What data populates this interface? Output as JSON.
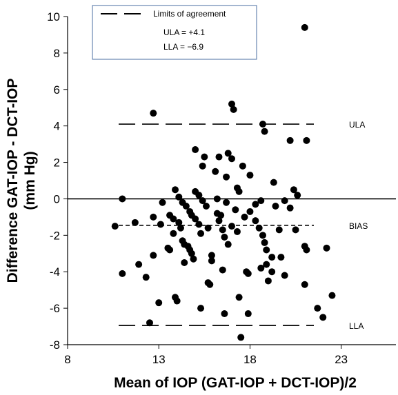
{
  "chart_data": {
    "type": "scatter",
    "xlabel": "Mean of IOP (GAT-IOP + DCT-IOP)/2",
    "ylabel": "Difference GAT-IOP - DCT-IOP (mm Hg)",
    "ylabel_lines": [
      "Difference GAT-IOP - DCT-IOP",
      "(mm Hg)"
    ],
    "xlim": [
      8,
      26
    ],
    "ylim": [
      -8,
      10
    ],
    "x_ticks": [
      8,
      13,
      18,
      23
    ],
    "y_ticks": [
      -8,
      -6,
      -4,
      -2,
      0,
      2,
      4,
      6,
      8,
      10
    ],
    "grid": false,
    "legend": {
      "position": "top-left",
      "title": "Limits of agreement",
      "lines": [
        "ULA = +4.1",
        "LLA = −6.9"
      ]
    },
    "reference_lines": [
      {
        "name": "ULA",
        "label": "ULA",
        "y": 4.1,
        "style": "long-dash",
        "x_range": [
          10.8,
          21.5
        ]
      },
      {
        "name": "BIAS",
        "label": "BIAS",
        "y": -1.45,
        "style": "short-dash",
        "x_range": [
          10.8,
          21.5
        ]
      },
      {
        "name": "LLA",
        "label": "LLA",
        "y": -6.95,
        "style": "long-dash",
        "x_range": [
          10.8,
          21.5
        ]
      },
      {
        "name": "zero",
        "label": "",
        "y": 0,
        "style": "solid",
        "x_range": [
          8,
          26
        ]
      }
    ],
    "points": [
      [
        10.6,
        -1.5
      ],
      [
        11.0,
        0.0
      ],
      [
        11.0,
        -4.1
      ],
      [
        11.7,
        -1.3
      ],
      [
        11.9,
        -3.6
      ],
      [
        12.3,
        -4.3
      ],
      [
        12.5,
        -6.8
      ],
      [
        12.7,
        -1.0
      ],
      [
        12.7,
        4.7
      ],
      [
        12.7,
        -3.1
      ],
      [
        13.0,
        -5.7
      ],
      [
        13.1,
        -1.4
      ],
      [
        13.2,
        -0.2
      ],
      [
        13.5,
        -2.7
      ],
      [
        13.6,
        -0.9
      ],
      [
        13.6,
        -2.8
      ],
      [
        13.8,
        -1.1
      ],
      [
        13.8,
        -1.9
      ],
      [
        13.9,
        0.5
      ],
      [
        13.9,
        -5.4
      ],
      [
        14.0,
        -5.6
      ],
      [
        14.1,
        0.1
      ],
      [
        14.1,
        -1.3
      ],
      [
        14.2,
        -1.6
      ],
      [
        14.3,
        -2.3
      ],
      [
        14.3,
        -0.2
      ],
      [
        14.4,
        -2.5
      ],
      [
        14.4,
        -3.5
      ],
      [
        14.5,
        -0.4
      ],
      [
        14.6,
        -2.6
      ],
      [
        14.7,
        -0.7
      ],
      [
        14.7,
        -2.8
      ],
      [
        14.8,
        -0.9
      ],
      [
        14.8,
        -3.0
      ],
      [
        14.9,
        -3.3
      ],
      [
        15.0,
        0.4
      ],
      [
        15.0,
        -1.1
      ],
      [
        15.0,
        2.7
      ],
      [
        15.2,
        0.2
      ],
      [
        15.2,
        -1.4
      ],
      [
        15.3,
        -1.9
      ],
      [
        15.3,
        -6.0
      ],
      [
        15.4,
        -0.1
      ],
      [
        15.4,
        1.8
      ],
      [
        15.5,
        2.3
      ],
      [
        15.6,
        -0.4
      ],
      [
        15.7,
        -1.6
      ],
      [
        15.7,
        -4.6
      ],
      [
        15.8,
        -4.7
      ],
      [
        15.9,
        -3.1
      ],
      [
        15.9,
        -3.4
      ],
      [
        16.1,
        1.5
      ],
      [
        16.2,
        -0.8
      ],
      [
        16.2,
        0.0
      ],
      [
        16.3,
        2.3
      ],
      [
        16.3,
        -1.2
      ],
      [
        16.4,
        -0.9
      ],
      [
        16.5,
        -1.7
      ],
      [
        16.5,
        -3.9
      ],
      [
        16.6,
        -2.1
      ],
      [
        16.6,
        -6.3
      ],
      [
        16.7,
        1.2
      ],
      [
        16.7,
        -0.2
      ],
      [
        16.8,
        -2.5
      ],
      [
        16.8,
        2.5
      ],
      [
        17.0,
        2.2
      ],
      [
        17.0,
        -1.5
      ],
      [
        17.0,
        5.2
      ],
      [
        17.1,
        4.9
      ],
      [
        17.2,
        -0.6
      ],
      [
        17.3,
        0.6
      ],
      [
        17.3,
        -1.8
      ],
      [
        17.4,
        -5.4
      ],
      [
        17.4,
        0.4
      ],
      [
        17.5,
        -7.6
      ],
      [
        17.6,
        1.8
      ],
      [
        17.7,
        -1.0
      ],
      [
        17.8,
        -4.0
      ],
      [
        17.9,
        -4.1
      ],
      [
        17.9,
        -6.3
      ],
      [
        18.0,
        1.3
      ],
      [
        18.0,
        -0.7
      ],
      [
        18.3,
        -0.3
      ],
      [
        18.3,
        -1.2
      ],
      [
        18.5,
        -1.6
      ],
      [
        18.6,
        -3.8
      ],
      [
        18.6,
        -0.1
      ],
      [
        18.7,
        -2.0
      ],
      [
        18.7,
        4.1
      ],
      [
        18.8,
        -2.4
      ],
      [
        18.8,
        3.7
      ],
      [
        18.9,
        -2.8
      ],
      [
        18.9,
        -3.6
      ],
      [
        19.0,
        -4.5
      ],
      [
        19.2,
        -3.2
      ],
      [
        19.2,
        -4.0
      ],
      [
        19.3,
        0.9
      ],
      [
        19.4,
        -0.4
      ],
      [
        19.6,
        -1.7
      ],
      [
        19.7,
        -3.2
      ],
      [
        19.9,
        -4.2
      ],
      [
        19.9,
        -0.1
      ],
      [
        20.2,
        -0.5
      ],
      [
        20.2,
        3.2
      ],
      [
        20.4,
        0.5
      ],
      [
        20.5,
        -1.7
      ],
      [
        20.6,
        0.2
      ],
      [
        21.0,
        -2.6
      ],
      [
        21.0,
        9.4
      ],
      [
        21.0,
        -4.7
      ],
      [
        21.1,
        3.2
      ],
      [
        21.1,
        -2.8
      ],
      [
        21.7,
        -6.0
      ],
      [
        22.0,
        -6.5
      ],
      [
        22.2,
        -2.7
      ],
      [
        22.5,
        -5.3
      ]
    ]
  }
}
